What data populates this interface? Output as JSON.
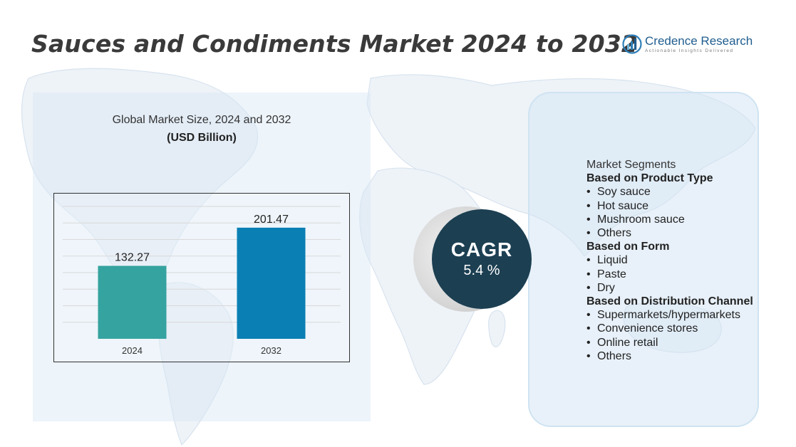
{
  "header": {
    "title": "Sauces and Condiments Market 2024 to 2032"
  },
  "logo": {
    "name": "Credence Research",
    "tagline": "Actionable Insights Delivered",
    "colors": [
      "#2e7fb8",
      "#1f5d8f",
      "#6fb3de"
    ]
  },
  "chart_panel": {
    "heading": "Global Market Size,  2024 and 2032",
    "subheading": "(USD Billion)"
  },
  "chart_data": {
    "type": "bar",
    "categories": [
      "2024",
      "2032"
    ],
    "values": [
      132.27,
      201.47
    ],
    "value_labels": [
      "132.27",
      "201.47"
    ],
    "colors": [
      "#35a3a0",
      "#0a7fb4"
    ],
    "title": "Global Market Size,  2024 and 2032",
    "ylabel": "(USD Billion)",
    "ylim": [
      0,
      240
    ],
    "grid": true
  },
  "cagr": {
    "label": "CAGR",
    "value": "5.4 %"
  },
  "segments": {
    "title": "Market Segments",
    "groups": [
      {
        "title": "Based on Product Type",
        "items": [
          "Soy sauce",
          "Hot sauce",
          "Mushroom sauce",
          "Others"
        ]
      },
      {
        "title": "Based on Form",
        "items": [
          "Liquid",
          "Paste",
          "Dry"
        ]
      },
      {
        "title": "Based on Distribution Channel",
        "items": [
          "Supermarkets/hypermarkets",
          "Convenience stores",
          "Online retail",
          "Others"
        ]
      }
    ]
  }
}
